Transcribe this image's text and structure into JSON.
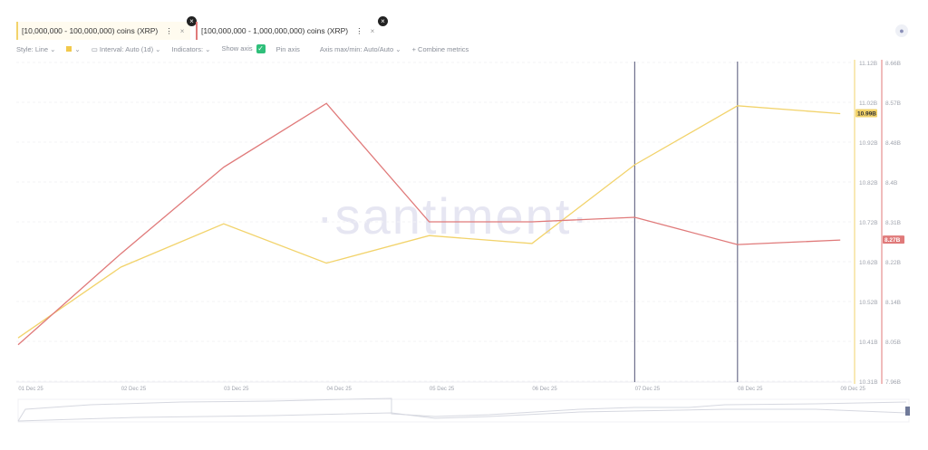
{
  "tabs": [
    {
      "label": "[10,000,000 - 100,000,000) coins (XRP)",
      "color": "#f2d36b"
    },
    {
      "label": "[100,000,000 - 1,000,000,000) coins (XRP)",
      "color": "#e07a7a"
    }
  ],
  "toolbar": {
    "style": "Style: Line",
    "interval": "Interval: Auto (1d)",
    "indicators": "Indicators:",
    "show_axis": "Show axis",
    "pin_axis": "Pin axis",
    "axis_maxmin": "Axis max/min: Auto/Auto",
    "combine": "+ Combine metrics"
  },
  "watermark": "·santiment·",
  "chart_data": {
    "type": "line",
    "categories": [
      "01 Dec 25",
      "02 Dec 25",
      "03 Dec 25",
      "04 Dec 25",
      "05 Dec 25",
      "06 Dec 25",
      "07 Dec 25",
      "08 Dec 25",
      "09 Dec 25"
    ],
    "series": [
      {
        "name": "[10,000,000 - 100,000,000) coins (XRP)",
        "color": "#f2d36b",
        "axis": "left",
        "values": [
          10.42,
          10.6,
          10.71,
          10.61,
          10.68,
          10.66,
          10.86,
          11.01,
          10.99
        ],
        "last_label": "10.99B"
      },
      {
        "name": "[100,000,000 - 1,000,000,000) coins (XRP)",
        "color": "#e07a7a",
        "axis": "right",
        "values": [
          8.04,
          8.24,
          8.43,
          8.57,
          8.31,
          8.31,
          8.32,
          8.26,
          8.27
        ],
        "last_label": "8.27B"
      }
    ],
    "left_axis": {
      "ticks": [
        "11.12B",
        "11.02B",
        "10.92B",
        "10.82B",
        "10.72B",
        "10.62B",
        "10.52B",
        "10.41B",
        "10.31B"
      ],
      "range": [
        10.31,
        11.12
      ],
      "unit": "B"
    },
    "right_axis": {
      "ticks": [
        "8.66B",
        "8.57B",
        "8.48B",
        "8.4B",
        "8.31B",
        "8.22B",
        "8.14B",
        "8.05B",
        "7.96B"
      ],
      "range": [
        7.96,
        8.66
      ],
      "unit": "B"
    },
    "vertical_markers": [
      "07 Dec 25",
      "08 Dec 25"
    ]
  }
}
